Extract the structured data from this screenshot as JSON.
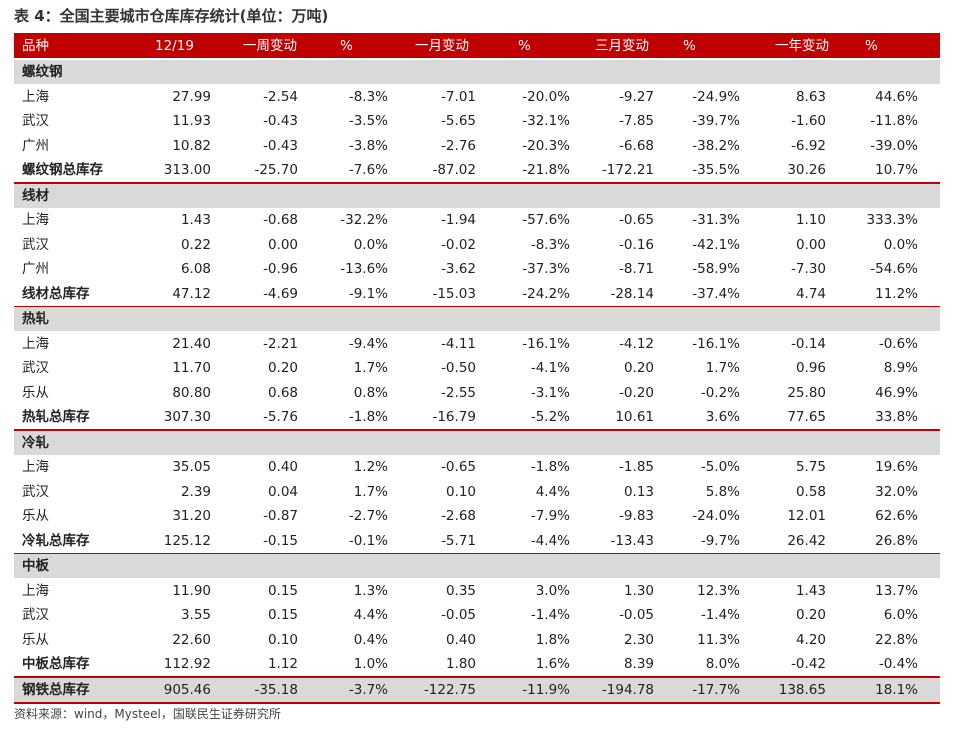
{
  "title": "表 4：全国主要城市仓库库存统计(单位：万吨)",
  "table": {
    "header": [
      "品种",
      "12/19",
      "一周变动",
      "%",
      "一月变动",
      "%",
      "三月变动",
      "%",
      "一年变动",
      "%"
    ],
    "sections": [
      {
        "name": "螺纹钢",
        "rows": [
          [
            "上海",
            "27.99",
            "-2.54",
            "-8.3%",
            "-7.01",
            "-20.0%",
            "-9.27",
            "-24.9%",
            "8.63",
            "44.6%"
          ],
          [
            "武汉",
            "11.93",
            "-0.43",
            "-3.5%",
            "-5.65",
            "-32.1%",
            "-7.85",
            "-39.7%",
            "-1.60",
            "-11.8%"
          ],
          [
            "广州",
            "10.82",
            "-0.43",
            "-3.8%",
            "-2.76",
            "-20.3%",
            "-6.68",
            "-38.2%",
            "-6.92",
            "-39.0%"
          ],
          [
            "螺纹钢总库存",
            "313.00",
            "-25.70",
            "-7.6%",
            "-87.02",
            "-21.8%",
            "-172.21",
            "-35.5%",
            "30.26",
            "10.7%"
          ]
        ]
      },
      {
        "name": "线材",
        "rows": [
          [
            "上海",
            "1.43",
            "-0.68",
            "-32.2%",
            "-1.94",
            "-57.6%",
            "-0.65",
            "-31.3%",
            "1.10",
            "333.3%"
          ],
          [
            "武汉",
            "0.22",
            "0.00",
            "0.0%",
            "-0.02",
            "-8.3%",
            "-0.16",
            "-42.1%",
            "0.00",
            "0.0%"
          ],
          [
            "广州",
            "6.08",
            "-0.96",
            "-13.6%",
            "-3.62",
            "-37.3%",
            "-8.71",
            "-58.9%",
            "-7.30",
            "-54.6%"
          ],
          [
            "线材总库存",
            "47.12",
            "-4.69",
            "-9.1%",
            "-15.03",
            "-24.2%",
            "-28.14",
            "-37.4%",
            "4.74",
            "11.2%"
          ]
        ]
      },
      {
        "name": "热轧",
        "rows": [
          [
            "上海",
            "21.40",
            "-2.21",
            "-9.4%",
            "-4.11",
            "-16.1%",
            "-4.12",
            "-16.1%",
            "-0.14",
            "-0.6%"
          ],
          [
            "武汉",
            "11.70",
            "0.20",
            "1.7%",
            "-0.50",
            "-4.1%",
            "0.20",
            "1.7%",
            "0.96",
            "8.9%"
          ],
          [
            "乐从",
            "80.80",
            "0.68",
            "0.8%",
            "-2.55",
            "-3.1%",
            "-0.20",
            "-0.2%",
            "25.80",
            "46.9%"
          ],
          [
            "热轧总库存",
            "307.30",
            "-5.76",
            "-1.8%",
            "-16.79",
            "-5.2%",
            "10.61",
            "3.6%",
            "77.65",
            "33.8%"
          ]
        ]
      },
      {
        "name": "冷轧",
        "rows": [
          [
            "上海",
            "35.05",
            "0.40",
            "1.2%",
            "-0.65",
            "-1.8%",
            "-1.85",
            "-5.0%",
            "5.75",
            "19.6%"
          ],
          [
            "武汉",
            "2.39",
            "0.04",
            "1.7%",
            "0.10",
            "4.4%",
            "0.13",
            "5.8%",
            "0.58",
            "32.0%"
          ],
          [
            "乐从",
            "31.20",
            "-0.87",
            "-2.7%",
            "-2.68",
            "-7.9%",
            "-9.83",
            "-24.0%",
            "12.01",
            "62.6%"
          ],
          [
            "冷轧总库存",
            "125.12",
            "-0.15",
            "-0.1%",
            "-5.71",
            "-4.4%",
            "-13.43",
            "-9.7%",
            "26.42",
            "26.8%"
          ]
        ]
      },
      {
        "name": "中板",
        "rows": [
          [
            "上海",
            "11.90",
            "0.15",
            "1.3%",
            "0.35",
            "3.0%",
            "1.30",
            "12.3%",
            "1.43",
            "13.7%"
          ],
          [
            "武汉",
            "3.55",
            "0.15",
            "4.4%",
            "-0.05",
            "-1.4%",
            "-0.05",
            "-1.4%",
            "0.20",
            "6.0%"
          ],
          [
            "乐从",
            "22.60",
            "0.10",
            "0.4%",
            "0.40",
            "1.8%",
            "2.30",
            "11.3%",
            "4.20",
            "22.8%"
          ],
          [
            "中板总库存",
            "112.92",
            "1.12",
            "1.0%",
            "1.80",
            "1.6%",
            "8.39",
            "8.0%",
            "-0.42",
            "-0.4%"
          ]
        ]
      }
    ],
    "total": [
      "钢铁总库存",
      "905.46",
      "-35.18",
      "-3.7%",
      "-122.75",
      "-11.9%",
      "-194.78",
      "-17.7%",
      "138.65",
      "18.1%"
    ]
  },
  "source": "资料来源：wind，Mysteel，国联民生证券研究所"
}
